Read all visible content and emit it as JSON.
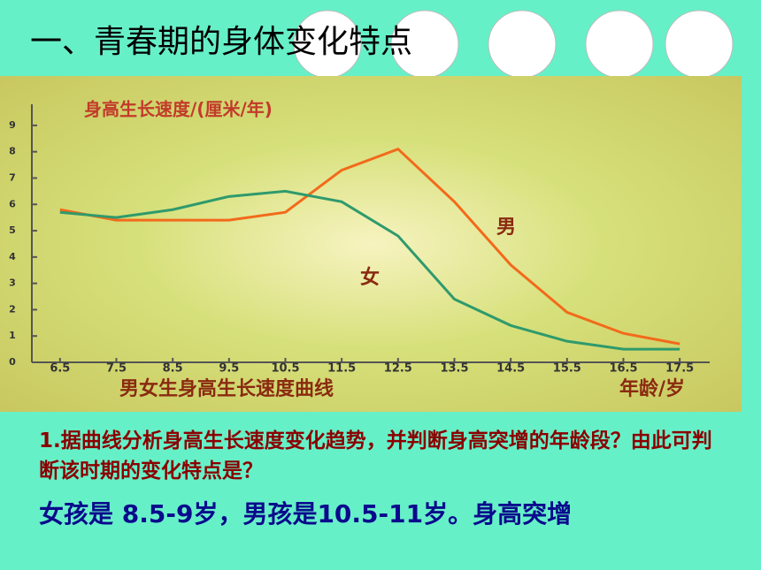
{
  "slide_title": "一、青春期的身体变化特点",
  "question": "1.据曲线分析身高生长速度变化趋势，并判断身高突增的年龄段？由此可判断该时期的变化特点是？",
  "answer": "女孩是 8.5-9岁，男孩是10.5-11岁。身高突增",
  "chart_data": {
    "type": "line",
    "title": "身高生长速度/(厘米/年)",
    "xlabel": "男女生身高生长速度曲线",
    "x_unit_label": "年龄/岁",
    "x": [
      6.5,
      7.5,
      8.5,
      9.5,
      10.5,
      11.5,
      12.5,
      13.5,
      14.5,
      15.5,
      16.5,
      17.5
    ],
    "series": [
      {
        "name": "男",
        "color": "#f26a1b",
        "values": [
          5.8,
          5.4,
          5.4,
          5.4,
          5.7,
          7.3,
          8.1,
          6.1,
          3.7,
          1.9,
          1.1,
          0.7
        ]
      },
      {
        "name": "女",
        "color": "#2f9a6c",
        "values": [
          5.7,
          5.5,
          5.8,
          6.3,
          6.5,
          6.1,
          4.8,
          2.4,
          1.4,
          0.8,
          0.5,
          0.5
        ]
      }
    ],
    "xlim": [
      6,
      18
    ],
    "ylim": [
      0,
      9.5
    ],
    "xticks": [
      6.5,
      7.5,
      8.5,
      9.5,
      10.5,
      11.5,
      12.5,
      13.5,
      14.5,
      15.5,
      16.5,
      17.5
    ],
    "yticks": [
      0,
      1,
      2,
      3,
      4,
      5,
      6,
      7,
      8,
      9
    ],
    "grid": false
  }
}
